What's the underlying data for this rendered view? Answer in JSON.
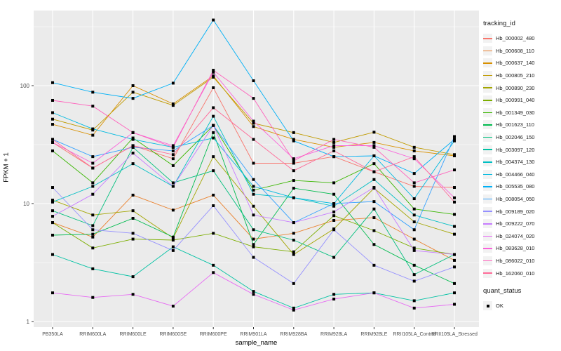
{
  "figure": {
    "panel_bg": "#EBEBEB",
    "grid_color": "#FFFFFF",
    "axis_text_color": "#4D4D4D",
    "tick_color": "#333333",
    "point_color": "#000000",
    "legend_key_bg": "#F2F2F2"
  },
  "chart_data": {
    "type": "line",
    "title": "",
    "xlabel": "sample_name",
    "ylabel": "FPKM + 1",
    "y_scale": "log10",
    "y_ticks": [
      1,
      10,
      100
    ],
    "y_minor_ticks": [
      3.162,
      31.62,
      316.2
    ],
    "ylim": [
      1,
      430
    ],
    "grid": true,
    "legend_position": "right",
    "marker": "black-square",
    "categories": [
      "PB350LA",
      "RRIM600LA",
      "RRIM600LE",
      "RRIM600SE",
      "RRIM600PE",
      "RRIM901LA",
      "RRIM928BA",
      "RRIM928LA",
      "RRIM928LE",
      "RRII105LA_Control",
      "RRII105LA_Stressed"
    ],
    "series": [
      {
        "name": "Hb_000002_480",
        "color": "#F8766D",
        "values": [
          33,
          20,
          31,
          24,
          96,
          22,
          22,
          25,
          18.6,
          14,
          13.7
        ]
      },
      {
        "name": "Hb_000608_110",
        "color": "#EA8331",
        "values": [
          6.9,
          5.2,
          11.8,
          8.8,
          11.8,
          5,
          5.6,
          7.2,
          7.6,
          5,
          3.3
        ]
      },
      {
        "name": "Hb_000637_140",
        "color": "#D89000",
        "values": [
          47,
          38,
          100,
          70,
          121,
          45,
          35,
          30,
          33,
          28,
          25.4
        ]
      },
      {
        "name": "Hb_000805_210",
        "color": "#C09B00",
        "values": [
          52,
          42,
          88,
          68,
          118,
          48,
          40,
          33,
          40.3,
          30,
          26
        ]
      },
      {
        "name": "Hb_000890_230",
        "color": "#A3A500",
        "values": [
          10.7,
          8,
          8.7,
          5.1,
          25,
          9.5,
          3.7,
          6.1,
          13.5,
          7,
          5.5
        ]
      },
      {
        "name": "Hb_000991_040",
        "color": "#7CAE00",
        "values": [
          6.9,
          4.2,
          5,
          4.9,
          5.6,
          4.3,
          3.9,
          7.9,
          5.9,
          4.2,
          3.7
        ]
      },
      {
        "name": "Hb_001349_030",
        "color": "#39B600",
        "values": [
          28,
          15,
          36,
          21,
          46,
          13,
          15.7,
          15,
          21.8,
          9,
          8.1
        ]
      },
      {
        "name": "Hb_001623_110",
        "color": "#00BB4E",
        "values": [
          5.4,
          5.5,
          7.5,
          5.2,
          40,
          4.5,
          13.5,
          12,
          4.5,
          3,
          2.1
        ]
      },
      {
        "name": "Hb_002046_150",
        "color": "#00BF7D",
        "values": [
          8.7,
          6.5,
          30,
          15,
          19,
          6,
          4.9,
          3.5,
          9,
          2.5,
          3.7
        ]
      },
      {
        "name": "Hb_003097_120",
        "color": "#00C1A3",
        "values": [
          3.7,
          2.8,
          2.4,
          4.3,
          3,
          1.8,
          1.3,
          1.7,
          1.75,
          1.5,
          1.75
        ]
      },
      {
        "name": "Hb_004374_130",
        "color": "#00BFC4",
        "values": [
          10.3,
          14,
          21.8,
          14,
          55,
          12,
          11.2,
          9.5,
          16,
          8,
          6.4
        ]
      },
      {
        "name": "Hb_004466_040",
        "color": "#00BAE0",
        "values": [
          59,
          43,
          35,
          30,
          36,
          14,
          11.2,
          10,
          25.4,
          11,
          34
        ]
      },
      {
        "name": "Hb_005535_080",
        "color": "#00B0F6",
        "values": [
          106,
          88,
          78,
          105,
          360,
          110,
          34,
          25,
          25.4,
          18,
          35
        ]
      },
      {
        "name": "Hb_008054_050",
        "color": "#35A2FF",
        "values": [
          35,
          25,
          30,
          28,
          46,
          16,
          6.9,
          10,
          10.4,
          6,
          37
        ]
      },
      {
        "name": "Hb_009189_020",
        "color": "#9590FF",
        "values": [
          13.7,
          6,
          5.6,
          4,
          9.6,
          3.5,
          2.1,
          6,
          3,
          2.2,
          2.9
        ]
      },
      {
        "name": "Hb_009222_070",
        "color": "#C77CFF",
        "values": [
          7.8,
          12,
          26.8,
          14,
          46,
          8,
          6.9,
          8.5,
          13.7,
          4,
          3.7
        ]
      },
      {
        "name": "Hb_024074_020",
        "color": "#E76BF3",
        "values": [
          1.75,
          1.6,
          1.7,
          1.35,
          2.6,
          1.7,
          1.25,
          1.55,
          1.75,
          1.3,
          1.4
        ]
      },
      {
        "name": "Hb_083628_010",
        "color": "#FA62DB",
        "values": [
          33,
          22,
          40,
          31,
          130,
          50,
          24,
          31,
          31,
          24,
          11.2
        ]
      },
      {
        "name": "Hb_086022_010",
        "color": "#FF62BC",
        "values": [
          75,
          67,
          40,
          30,
          135,
          78,
          23,
          35,
          30,
          15,
          19.3
        ]
      },
      {
        "name": "Hb_162060_010",
        "color": "#FF6A98",
        "values": [
          35,
          20,
          31,
          26,
          65,
          35,
          19,
          28,
          18.6,
          25,
          10.3
        ]
      }
    ]
  },
  "legend": {
    "tracking_title": "tracking_id",
    "quant_title": "quant_status",
    "quant_label": "OK"
  }
}
